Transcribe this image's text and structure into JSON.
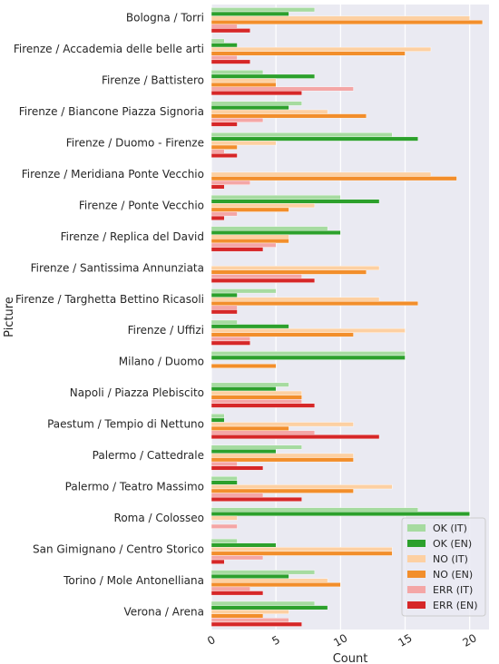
{
  "chart_data": {
    "type": "bar",
    "orientation": "horizontal",
    "xlabel": "Count",
    "ylabel": "Picture",
    "xlim": [
      0,
      21.5
    ],
    "xticks": [
      0,
      5,
      10,
      15,
      20
    ],
    "grid": true,
    "legend_position": "bottom-right",
    "categories": [
      "Bologna / Torri",
      "Firenze / Accademia delle belle arti",
      "Firenze / Battistero",
      "Firenze / Biancone Piazza Signoria",
      "Firenze / Duomo - Firenze",
      "Firenze / Meridiana Ponte Vecchio",
      "Firenze / Ponte Vecchio",
      "Firenze / Replica del David",
      "Firenze / Santissima Annunziata",
      "Firenze / Targhetta Bettino Ricasoli",
      "Firenze / Uffizi",
      "Milano / Duomo",
      "Napoli / Piazza Plebiscito",
      "Paestum / Tempio di Nettuno",
      "Palermo / Cattedrale",
      "Palermo / Teatro Massimo",
      "Roma / Colosseo",
      "San Gimignano / Centro Storico",
      "Torino / Mole Antonelliana",
      "Verona / Arena"
    ],
    "series": [
      {
        "name": "OK (IT)",
        "color": "#a6dba0",
        "values": [
          8,
          1,
          4,
          7,
          14,
          0,
          10,
          9,
          0,
          5,
          2,
          15,
          6,
          1,
          7,
          2,
          16,
          2,
          8,
          8
        ]
      },
      {
        "name": "OK (EN)",
        "color": "#2ca02c",
        "values": [
          6,
          2,
          8,
          6,
          16,
          0,
          13,
          10,
          0,
          2,
          6,
          15,
          5,
          1,
          5,
          2,
          20,
          5,
          6,
          9
        ]
      },
      {
        "name": "NO (IT)",
        "color": "#fdd0a2",
        "values": [
          20,
          17,
          5,
          9,
          5,
          17,
          8,
          6,
          13,
          13,
          15,
          0,
          7,
          11,
          11,
          14,
          2,
          14,
          9,
          6
        ]
      },
      {
        "name": "NO (EN)",
        "color": "#f28e2b",
        "values": [
          21,
          15,
          5,
          12,
          2,
          19,
          6,
          6,
          12,
          16,
          11,
          5,
          7,
          6,
          11,
          11,
          0,
          14,
          10,
          4
        ]
      },
      {
        "name": "ERR (IT)",
        "color": "#f4a6a6",
        "values": [
          2,
          2,
          11,
          4,
          1,
          3,
          2,
          5,
          7,
          2,
          3,
          0,
          7,
          8,
          2,
          4,
          2,
          4,
          3,
          6
        ]
      },
      {
        "name": "ERR (EN)",
        "color": "#d62728",
        "values": [
          3,
          3,
          7,
          2,
          2,
          1,
          1,
          4,
          8,
          2,
          3,
          0,
          8,
          13,
          4,
          7,
          0,
          1,
          4,
          7
        ]
      }
    ]
  }
}
